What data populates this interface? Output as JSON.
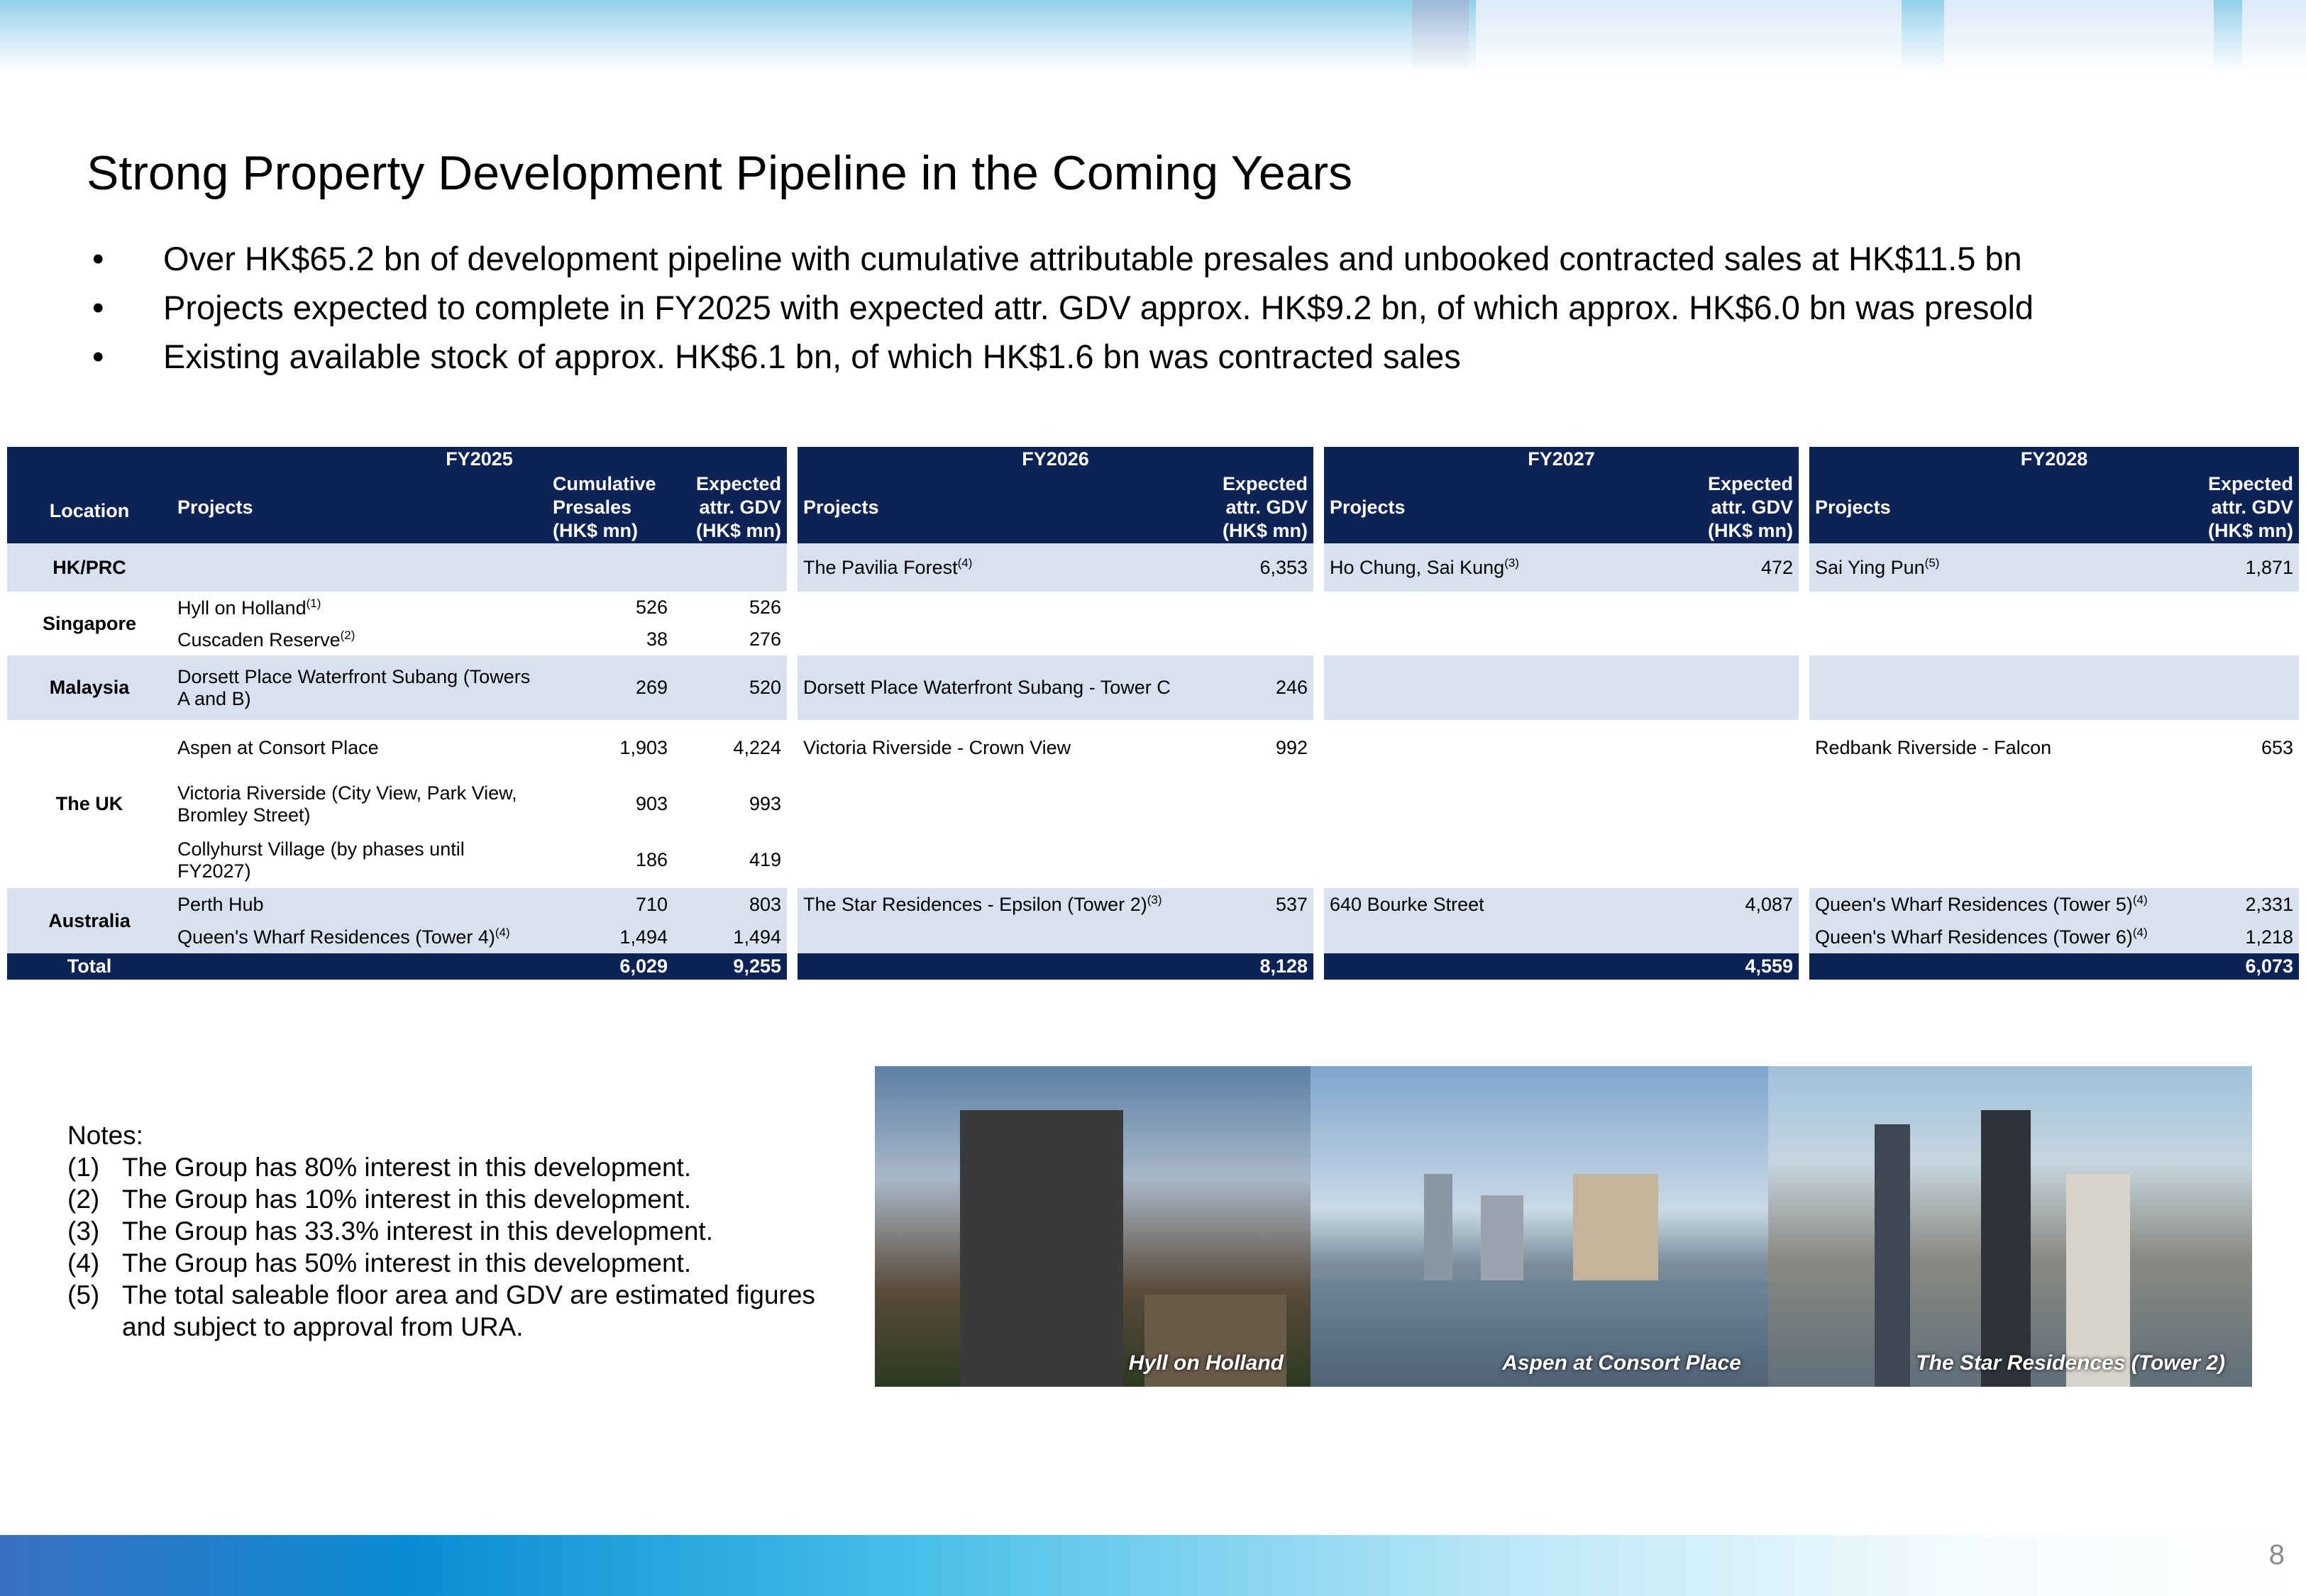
{
  "header": {
    "title": "Strong Property Development Pipeline in the Coming Years",
    "bullets": [
      "Over HK$65.2 bn of development pipeline with cumulative attributable presales and unbooked contracted sales at HK$11.5 bn",
      "Projects expected to complete in FY2025 with expected attr. GDV approx. HK$9.2 bn, of which approx. HK$6.0 bn was presold",
      "Existing available stock of approx. HK$6.1 bn, of which HK$1.6 bn was contracted sales"
    ]
  },
  "table": {
    "location_heading": "Location",
    "groups": [
      "FY2025",
      "FY2026",
      "FY2027",
      "FY2028"
    ],
    "headings": [
      [
        "Projects"
      ],
      [
        "Cumulative",
        "Presales",
        "(HK$ mn)"
      ],
      [
        "Expected",
        "attr. GDV",
        "(HK$ mn)"
      ],
      [
        "Projects"
      ],
      [
        "Expected",
        "attr. GDV",
        "(HK$ mn)"
      ],
      [
        "Projects"
      ],
      [
        "Expected",
        "attr. GDV",
        "(HK$ mn)"
      ],
      [
        "Projects"
      ],
      [
        "Expected",
        "attr. GDV",
        "(HK$ mn)"
      ]
    ],
    "regions": [
      {
        "location": "HK/PRC",
        "rows": [
          [
            null,
            null,
            null,
            {
              "name": "The Pavilia Forest",
              "note": "(4)"
            },
            "6,353",
            {
              "name": "Ho Chung, Sai Kung",
              "note": "(3)"
            },
            "472",
            {
              "name": "Sai Ying Pun",
              "note": "(5)"
            },
            "1,871"
          ]
        ]
      },
      {
        "location": "Singapore",
        "rows": [
          [
            {
              "name": "Hyll on Holland",
              "note": "(1)"
            },
            "526",
            "526",
            null,
            null,
            null,
            null,
            null,
            null
          ],
          [
            {
              "name": "Cuscaden Reserve",
              "note": "(2)"
            },
            "38",
            "276",
            null,
            null,
            null,
            null,
            null,
            null
          ]
        ]
      },
      {
        "location": "Malaysia",
        "rows": [
          [
            "Dorsett Place Waterfront Subang (Towers A and B)",
            "269",
            "520",
            "Dorsett Place Waterfront Subang - Tower C",
            "246",
            null,
            null,
            null,
            null
          ]
        ]
      },
      {
        "location": "The UK",
        "rows": [
          [
            "Aspen at Consort Place",
            "1,903",
            "4,224",
            "Victoria Riverside - Crown View",
            "992",
            null,
            null,
            "Redbank Riverside - Falcon",
            "653"
          ],
          [
            "Victoria Riverside (City View, Park View, Bromley Street)",
            "903",
            "993",
            null,
            null,
            null,
            null,
            null,
            null
          ],
          [
            "Collyhurst Village (by phases until FY2027)",
            "186",
            "419",
            null,
            null,
            null,
            null,
            null,
            null
          ]
        ]
      },
      {
        "location": "Australia",
        "rows": [
          [
            "Perth Hub",
            "710",
            "803",
            {
              "name": "The Star Residences - Epsilon (Tower 2)",
              "note": "(3)"
            },
            "537",
            "640 Bourke Street",
            "4,087",
            {
              "name": "Queen's Wharf Residences (Tower 5)",
              "note": "(4)"
            },
            "2,331"
          ],
          [
            {
              "name": "Queen's Wharf Residences (Tower 4)",
              "note": "(4)"
            },
            "1,494",
            "1,494",
            null,
            null,
            null,
            null,
            {
              "name": "Queen's Wharf Residences (Tower 6)",
              "note": "(4)"
            },
            "1,218"
          ]
        ]
      }
    ],
    "total": {
      "label": "Total",
      "values": [
        "6,029",
        "9,255",
        "8,128",
        "4,559",
        "6,073"
      ]
    }
  },
  "notes": {
    "title": "Notes:",
    "items": [
      {
        "marker": "(1)",
        "text": "The Group has 80% interest in this development."
      },
      {
        "marker": "(2)",
        "text": "The Group has 10% interest in this development."
      },
      {
        "marker": "(3)",
        "text": "The Group has 33.3% interest in this development."
      },
      {
        "marker": "(4)",
        "text": "The Group has 50% interest in this development."
      },
      {
        "marker": "(5)",
        "text": "The total saleable floor area and GDV are estimated figures and subject to approval from URA."
      }
    ]
  },
  "images": [
    {
      "caption": "Hyll on Holland"
    },
    {
      "caption": "Aspen at Consort Place"
    },
    {
      "caption": "The Star Residences (Tower 2)"
    }
  ],
  "page_number": "8"
}
